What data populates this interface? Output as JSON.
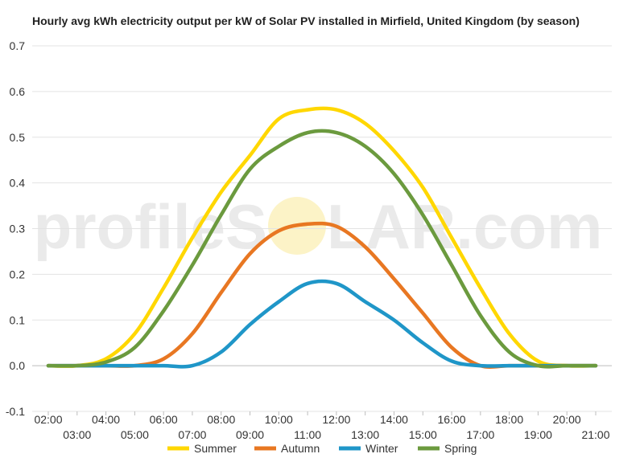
{
  "watermark": {
    "left": "profileS",
    "right": "LAR.com"
  },
  "chart_data": {
    "type": "line",
    "title": "Hourly avg kWh electricity output per kW of Solar PV installed in Mirfield, United Kingdom (by season)",
    "xlabel": "",
    "ylabel": "",
    "xlim": [
      2,
      21
    ],
    "ylim": [
      -0.1,
      0.7
    ],
    "yticks": [
      -0.1,
      0.0,
      0.1,
      0.2,
      0.3,
      0.4,
      0.5,
      0.6,
      0.7
    ],
    "ytick_labels": [
      "-0.1",
      "0.0",
      "0.1",
      "0.2",
      "0.3",
      "0.4",
      "0.5",
      "0.6",
      "0.7"
    ],
    "xticks": [
      2,
      3,
      4,
      5,
      6,
      7,
      8,
      9,
      10,
      11,
      12,
      13,
      14,
      15,
      16,
      17,
      18,
      19,
      20,
      21
    ],
    "xtick_labels": [
      "02:00",
      "03:00",
      "04:00",
      "05:00",
      "06:00",
      "07:00",
      "08:00",
      "09:00",
      "10:00",
      "11:00",
      "12:00",
      "13:00",
      "14:00",
      "15:00",
      "16:00",
      "17:00",
      "18:00",
      "19:00",
      "20:00",
      "21:00"
    ],
    "grid": "horizontal",
    "legend": "bottom",
    "x": [
      2,
      3,
      4,
      5,
      6,
      7,
      8,
      9,
      10,
      11,
      12,
      13,
      14,
      15,
      16,
      17,
      18,
      19,
      20,
      21
    ],
    "series": [
      {
        "name": "Summer",
        "color": "#FFD700",
        "values": [
          0.0,
          0.0,
          0.015,
          0.07,
          0.17,
          0.28,
          0.38,
          0.46,
          0.54,
          0.56,
          0.56,
          0.53,
          0.47,
          0.39,
          0.28,
          0.17,
          0.07,
          0.01,
          0.0,
          0.0
        ]
      },
      {
        "name": "Autumn",
        "color": "#E87722",
        "values": [
          0.0,
          0.0,
          0.0,
          0.0,
          0.015,
          0.07,
          0.16,
          0.245,
          0.295,
          0.31,
          0.305,
          0.26,
          0.19,
          0.115,
          0.04,
          0.0,
          0.0,
          0.0,
          0.0,
          0.0
        ]
      },
      {
        "name": "Winter",
        "color": "#1F96C8",
        "values": [
          0.0,
          0.0,
          0.0,
          0.0,
          0.0,
          0.0,
          0.03,
          0.09,
          0.14,
          0.18,
          0.18,
          0.14,
          0.1,
          0.05,
          0.01,
          0.0,
          0.0,
          0.0,
          0.0,
          0.0
        ]
      },
      {
        "name": "Spring",
        "color": "#6B9A3E",
        "values": [
          0.0,
          0.0,
          0.008,
          0.04,
          0.12,
          0.22,
          0.33,
          0.43,
          0.48,
          0.51,
          0.51,
          0.48,
          0.42,
          0.33,
          0.22,
          0.11,
          0.03,
          0.0,
          0.0,
          0.0
        ]
      }
    ]
  }
}
